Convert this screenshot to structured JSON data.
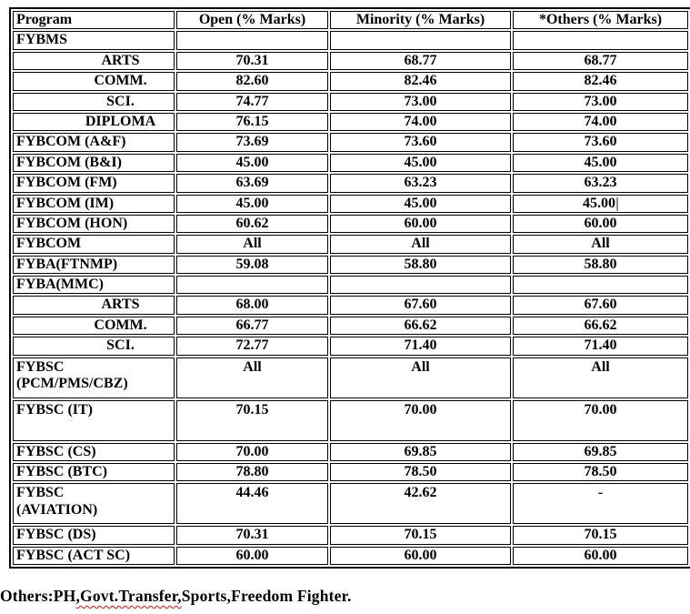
{
  "table": {
    "headers": [
      "Program",
      "Open (% Marks)",
      "Minority (% Marks)",
      "*Others (% Marks)"
    ],
    "rows": [
      {
        "program": "FYBMS",
        "open": "",
        "minority": "",
        "others": "",
        "indent": false,
        "tall": false
      },
      {
        "program": "ARTS",
        "open": "70.31",
        "minority": "68.77",
        "others": "68.77",
        "indent": true,
        "tall": false
      },
      {
        "program": "COMM.",
        "open": "82.60",
        "minority": "82.46",
        "others": "82.46",
        "indent": true,
        "tall": false
      },
      {
        "program": "SCI.",
        "open": "74.77",
        "minority": "73.00",
        "others": "73.00",
        "indent": true,
        "tall": false
      },
      {
        "program": "DIPLOMA",
        "open": "76.15",
        "minority": "74.00",
        "others": "74.00",
        "indent": true,
        "tall": false
      },
      {
        "program": "FYBCOM (A&F)",
        "open": "73.69",
        "minority": "73.60",
        "others": "73.60",
        "indent": false,
        "tall": false
      },
      {
        "program": "FYBCOM (B&I)",
        "open": "45.00",
        "minority": "45.00",
        "others": "45.00",
        "indent": false,
        "tall": false
      },
      {
        "program": "FYBCOM (FM)",
        "open": "63.69",
        "minority": "63.23",
        "others": "63.23",
        "indent": false,
        "tall": false
      },
      {
        "program": "FYBCOM (IM)",
        "open": "45.00",
        "minority": "45.00",
        "others": "45.00",
        "indent": false,
        "tall": false,
        "cursor_after": "others"
      },
      {
        "program": "FYBCOM (HON)",
        "open": "60.62",
        "minority": "60.00",
        "others": "60.00",
        "indent": false,
        "tall": false
      },
      {
        "program": "FYBCOM",
        "open": "All",
        "minority": "All",
        "others": "All",
        "indent": false,
        "tall": false
      },
      {
        "program": "FYBA(FTNMP)",
        "open": "59.08",
        "minority": "58.80",
        "others": "58.80",
        "indent": false,
        "tall": false
      },
      {
        "program": "FYBA(MMC)",
        "open": "",
        "minority": "",
        "others": "",
        "indent": false,
        "tall": false
      },
      {
        "program": "ARTS",
        "open": "68.00",
        "minority": "67.60",
        "others": "67.60",
        "indent": true,
        "tall": false
      },
      {
        "program": "COMM.",
        "open": "66.77",
        "minority": "66.62",
        "others": "66.62",
        "indent": true,
        "tall": false
      },
      {
        "program": "SCI.",
        "open": "72.77",
        "minority": "71.40",
        "others": "71.40",
        "indent": true,
        "tall": false
      },
      {
        "program": "FYBSC\n(PCM/PMS/CBZ)",
        "open": "All",
        "minority": "All",
        "others": "All",
        "indent": false,
        "tall": true
      },
      {
        "program": "FYBSC (IT)",
        "open": "70.15",
        "minority": "70.00",
        "others": "70.00",
        "indent": false,
        "tall": true
      },
      {
        "program": "FYBSC (CS)",
        "open": "70.00",
        "minority": "69.85",
        "others": "69.85",
        "indent": false,
        "tall": false
      },
      {
        "program": "FYBSC (BTC)",
        "open": "78.80",
        "minority": "78.50",
        "others": "78.50",
        "indent": false,
        "tall": false
      },
      {
        "program": "FYBSC\n(AVIATION)",
        "open": "44.46",
        "minority": "42.62",
        "others": "-",
        "indent": false,
        "tall": true
      },
      {
        "program": "FYBSC (DS)",
        "open": "70.31",
        "minority": "70.15",
        "others": "70.15",
        "indent": false,
        "tall": false
      },
      {
        "program": "FYBSC (ACT SC)",
        "open": "60.00",
        "minority": "60.00",
        "others": "60.00",
        "indent": false,
        "tall": false
      }
    ]
  },
  "footnote": {
    "prefix": "Others:PH",
    "misspelled_segment": ",Govt.Transfer,",
    "suffix": "Sports,Freedom Fighter."
  },
  "colors": {
    "border": "#000000",
    "text": "#000000",
    "squiggle": "#cc1111",
    "caret": "#8f8f8f",
    "background": "#ffffff"
  }
}
